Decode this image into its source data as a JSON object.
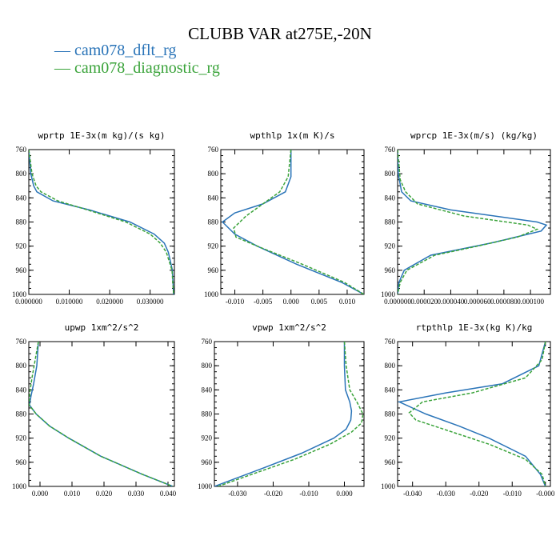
{
  "figure": {
    "title": "CLUBB VAR at275E,-20N",
    "legend": [
      {
        "label": "cam078_dflt_rg",
        "color": "#2a74b8",
        "dash": "solid"
      },
      {
        "label": "cam078_diagnostic_rg",
        "color": "#3aa33a",
        "dash": "dashed"
      }
    ]
  },
  "chart_data": [
    {
      "type": "line",
      "title": "wprtp  1E-3x(m kg)/(s kg)",
      "xlim": [
        0.0,
        0.036
      ],
      "ylim": [
        760,
        1000
      ],
      "y_inverted": true,
      "xticks": [
        0.0,
        0.01,
        0.02,
        0.03
      ],
      "xticklabels": [
        "0.000000",
        "0.010000",
        "0.020000",
        "0.030000"
      ],
      "yticks": [
        760,
        800,
        840,
        880,
        920,
        960,
        1000
      ],
      "series": [
        {
          "name": "cam078_dflt_rg",
          "y": [
            760,
            800,
            820,
            830,
            845,
            860,
            880,
            900,
            915,
            930,
            960,
            1000
          ],
          "x": [
            0.0,
            0.0005,
            0.0012,
            0.002,
            0.006,
            0.015,
            0.025,
            0.031,
            0.0335,
            0.0345,
            0.0355,
            0.0358
          ]
        },
        {
          "name": "cam078_diagnostic_rg",
          "y": [
            760,
            800,
            820,
            830,
            845,
            860,
            880,
            900,
            915,
            930,
            960,
            1000
          ],
          "x": [
            0.0,
            0.0008,
            0.0018,
            0.003,
            0.0072,
            0.0145,
            0.024,
            0.03,
            0.0325,
            0.034,
            0.0354,
            0.0358
          ]
        }
      ]
    },
    {
      "type": "line",
      "title": "wpthlp  1x(m K)/s",
      "xlim": [
        -0.0125,
        0.013
      ],
      "ylim": [
        760,
        1000
      ],
      "y_inverted": true,
      "xticks": [
        -0.01,
        -0.005,
        0.0,
        0.005,
        0.01
      ],
      "xticklabels": [
        "-0.010",
        "-0.005",
        "0.000",
        "0.005",
        "0.010"
      ],
      "yticks": [
        760,
        800,
        840,
        880,
        920,
        960,
        1000
      ],
      "series": [
        {
          "name": "cam078_dflt_rg",
          "y": [
            760,
            805,
            830,
            850,
            865,
            880,
            900,
            920,
            950,
            980,
            1000
          ],
          "x": [
            0.0,
            0.0,
            -0.001,
            -0.005,
            -0.01,
            -0.0122,
            -0.01,
            -0.006,
            0.001,
            0.009,
            0.013
          ]
        },
        {
          "name": "cam078_diagnostic_rg",
          "y": [
            760,
            805,
            830,
            850,
            870,
            890,
            905,
            920,
            950,
            980,
            1000
          ],
          "x": [
            0.0,
            -0.0005,
            -0.002,
            -0.005,
            -0.008,
            -0.0102,
            -0.0098,
            -0.006,
            0.002,
            0.0095,
            0.013
          ]
        }
      ]
    },
    {
      "type": "line",
      "title": "wprcp  1E-3x(m/s) (kg/kg)",
      "xlim": [
        0.0,
        0.000115
      ],
      "ylim": [
        760,
        1000
      ],
      "y_inverted": true,
      "xticks": [
        0.0,
        2e-05,
        4e-05,
        6e-05,
        8e-05,
        0.0001
      ],
      "xticklabels": [
        "0.000000",
        "0.000020",
        "0.000040",
        "0.000060",
        "0.000080",
        "0.000100"
      ],
      "yticks": [
        760,
        800,
        840,
        880,
        920,
        960,
        1000
      ],
      "series": [
        {
          "name": "cam078_dflt_rg",
          "y": [
            760,
            800,
            830,
            845,
            860,
            880,
            885,
            895,
            915,
            935,
            960,
            980,
            1000
          ],
          "x": [
            0.0,
            5e-07,
            3e-06,
            1e-05,
            4e-05,
            0.000105,
            0.000112,
            0.000108,
            7e-05,
            2.5e-05,
            5e-06,
            1e-06,
            0.0
          ]
        },
        {
          "name": "cam078_diagnostic_rg",
          "y": [
            760,
            810,
            830,
            850,
            870,
            885,
            892,
            905,
            920,
            935,
            960,
            980,
            1000
          ],
          "x": [
            0.0,
            2e-06,
            6e-06,
            1.5e-05,
            5e-05,
            9.8e-05,
            0.000105,
            9e-05,
            6e-05,
            2.8e-05,
            7e-06,
            2e-06,
            0.0
          ]
        }
      ]
    },
    {
      "type": "line",
      "title": "upwp  1xm^2/s^2",
      "xlim": [
        -0.0035,
        0.042
      ],
      "ylim": [
        760,
        1000
      ],
      "y_inverted": true,
      "xticks": [
        0.0,
        0.01,
        0.02,
        0.03,
        0.04
      ],
      "xticklabels": [
        "0.000",
        "0.010",
        "0.020",
        "0.030",
        "0.040"
      ],
      "yticks": [
        760,
        800,
        840,
        880,
        920,
        960,
        1000
      ],
      "series": [
        {
          "name": "cam078_dflt_rg",
          "y": [
            760,
            800,
            830,
            850,
            865,
            880,
            900,
            920,
            950,
            980,
            1000
          ],
          "x": [
            -0.0005,
            -0.001,
            -0.002,
            -0.0028,
            -0.0033,
            -0.0012,
            0.003,
            0.009,
            0.019,
            0.032,
            0.0415
          ]
        },
        {
          "name": "cam078_diagnostic_rg",
          "y": [
            760,
            790,
            820,
            845,
            865,
            880,
            900,
            920,
            950,
            980,
            1000
          ],
          "x": [
            -0.0005,
            -0.0015,
            -0.0025,
            -0.0032,
            -0.0034,
            -0.0012,
            0.003,
            0.009,
            0.019,
            0.032,
            0.0415
          ]
        }
      ]
    },
    {
      "type": "line",
      "title": "vpwp  1xm^2/s^2",
      "xlim": [
        -0.0365,
        0.0055
      ],
      "ylim": [
        760,
        1000
      ],
      "y_inverted": true,
      "xticks": [
        -0.03,
        -0.02,
        -0.01,
        0.0
      ],
      "xticklabels": [
        "-0.030",
        "-0.020",
        "-0.010",
        "0.000"
      ],
      "yticks": [
        760,
        800,
        840,
        880,
        920,
        960,
        1000
      ],
      "series": [
        {
          "name": "cam078_dflt_rg",
          "y": [
            760,
            800,
            840,
            860,
            875,
            890,
            905,
            920,
            945,
            970,
            1000
          ],
          "x": [
            0.0,
            0.0,
            0.0003,
            0.0015,
            0.002,
            0.0018,
            0.0005,
            -0.003,
            -0.012,
            -0.023,
            -0.0365
          ]
        },
        {
          "name": "cam078_diagnostic_rg",
          "y": [
            760,
            800,
            840,
            860,
            880,
            895,
            910,
            930,
            955,
            980,
            1000
          ],
          "x": [
            0.0,
            0.0005,
            0.0015,
            0.0035,
            0.0052,
            0.0048,
            0.002,
            -0.004,
            -0.014,
            -0.026,
            -0.0355
          ]
        }
      ]
    },
    {
      "type": "line",
      "title": "rtpthlp  1E-3x(kg K)/kg",
      "xlim": [
        -0.0445,
        0.0015
      ],
      "ylim": [
        760,
        1000
      ],
      "y_inverted": true,
      "xticks": [
        -0.04,
        -0.03,
        -0.02,
        -0.01,
        0.0
      ],
      "xticklabels": [
        "-0.040",
        "-0.030",
        "-0.020",
        "-0.010",
        "-0.000"
      ],
      "yticks": [
        760,
        800,
        840,
        880,
        920,
        960,
        1000
      ],
      "series": [
        {
          "name": "cam078_dflt_rg",
          "y": [
            760,
            800,
            830,
            845,
            860,
            870,
            880,
            900,
            920,
            950,
            980,
            1000
          ],
          "x": [
            0.0,
            -0.002,
            -0.013,
            -0.03,
            -0.044,
            -0.04,
            -0.036,
            -0.026,
            -0.017,
            -0.006,
            -0.0015,
            0.0
          ]
        },
        {
          "name": "cam078_diagnostic_rg",
          "y": [
            760,
            790,
            820,
            845,
            860,
            878,
            890,
            910,
            930,
            955,
            980,
            1000
          ],
          "x": [
            0.0,
            -0.001,
            -0.006,
            -0.022,
            -0.037,
            -0.041,
            -0.039,
            -0.028,
            -0.017,
            -0.006,
            -0.001,
            0.0
          ]
        }
      ]
    }
  ]
}
